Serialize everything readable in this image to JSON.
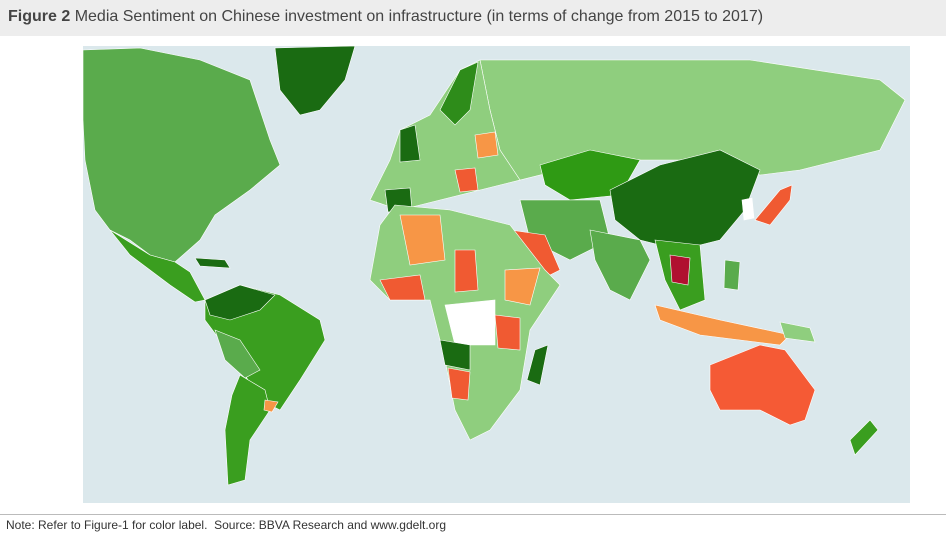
{
  "header": {
    "label": "Figure 2",
    "title": "Media Sentiment on Chinese investment on infrastructure (in terms of change from 2015 to 2017)"
  },
  "note": "Note: Refer to Figure-1 for color label.  Source: BBVA Research and www.gdelt.org"
}
